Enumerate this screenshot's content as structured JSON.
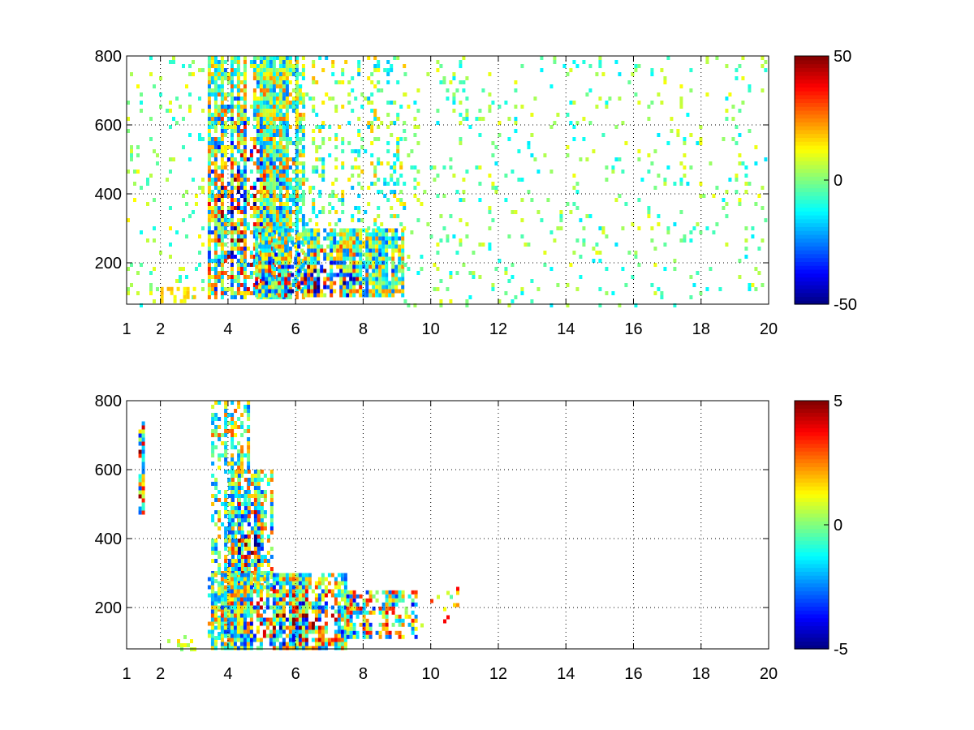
{
  "figure": {
    "background": "#ffffff"
  },
  "chart_data": [
    {
      "type": "heatmap",
      "title": "",
      "xlabel": "",
      "ylabel": "",
      "xlim": [
        1,
        20
      ],
      "ylim": [
        80,
        800
      ],
      "xticks": [
        1,
        2,
        4,
        6,
        8,
        10,
        12,
        14,
        16,
        18,
        20
      ],
      "xtick_labels": [
        "1",
        "2",
        "4",
        "6",
        "8",
        "10",
        "12",
        "14",
        "16",
        "18",
        "20"
      ],
      "xgrid_values": [
        2,
        4,
        6,
        8,
        10,
        12,
        14,
        16,
        18
      ],
      "yticks": [
        200,
        400,
        600,
        800
      ],
      "ytick_labels": [
        "200",
        "400",
        "600",
        "800"
      ],
      "grid": true,
      "grid_style": "dotted",
      "colormap": "jet",
      "clim": [
        -50,
        50
      ],
      "colorbar": {
        "placement": "right",
        "ticks": [
          -50,
          0,
          50
        ],
        "tick_labels": [
          "-50",
          "0",
          "50"
        ]
      },
      "regions": [
        {
          "x": [
            1.0,
            3.3
          ],
          "y": [
            80,
            800
          ],
          "value_range": [
            -12,
            14
          ],
          "density": 0.08,
          "note": "sparse vertical streaks"
        },
        {
          "x": [
            2.0,
            3.0
          ],
          "y": [
            90,
            130
          ],
          "value_range": [
            10,
            20
          ],
          "density": 0.5
        },
        {
          "x": [
            3.4,
            6.2
          ],
          "y": [
            100,
            800
          ],
          "value_range": [
            -45,
            45
          ],
          "density": 0.75,
          "peak": [
            4.3,
            350
          ]
        },
        {
          "x": [
            4.8,
            9.2
          ],
          "y": [
            100,
            300
          ],
          "value_range": [
            -50,
            45
          ],
          "density": 0.85,
          "peak": [
            6.5,
            160
          ]
        },
        {
          "x": [
            6.0,
            9.2
          ],
          "y": [
            300,
            800
          ],
          "value_range": [
            -20,
            20
          ],
          "density": 0.2
        },
        {
          "x": [
            9.2,
            20.0
          ],
          "y": [
            80,
            800
          ],
          "value_range": [
            -15,
            12
          ],
          "density": 0.07,
          "note": "scattered streaks"
        }
      ]
    },
    {
      "type": "heatmap",
      "title": "",
      "xlabel": "",
      "ylabel": "",
      "xlim": [
        1,
        20
      ],
      "ylim": [
        80,
        800
      ],
      "xticks": [
        1,
        2,
        4,
        6,
        8,
        10,
        12,
        14,
        16,
        18,
        20
      ],
      "xtick_labels": [
        "1",
        "2",
        "4",
        "6",
        "8",
        "10",
        "12",
        "14",
        "16",
        "18",
        "20"
      ],
      "xgrid_values": [
        2,
        4,
        6,
        8,
        10,
        12,
        14,
        16,
        18
      ],
      "yticks": [
        200,
        400,
        600,
        800
      ],
      "ytick_labels": [
        "200",
        "400",
        "600",
        "800"
      ],
      "grid": true,
      "grid_style": "dotted",
      "colormap": "jet",
      "clim": [
        -5,
        5
      ],
      "colorbar": {
        "placement": "right",
        "ticks": [
          -5,
          0,
          5
        ],
        "tick_labels": [
          "-5",
          "0",
          "5"
        ]
      },
      "regions": [
        {
          "x": [
            1.35,
            1.45
          ],
          "y": [
            470,
            740
          ],
          "value_range": [
            -5,
            5
          ],
          "density": 0.9,
          "note": "thin vertical line"
        },
        {
          "x": [
            2.2,
            3.0
          ],
          "y": [
            80,
            120
          ],
          "value_range": [
            0,
            2
          ],
          "density": 0.3
        },
        {
          "x": [
            3.5,
            4.6
          ],
          "y": [
            100,
            800
          ],
          "value_range": [
            -3,
            3
          ],
          "density": 0.55
        },
        {
          "x": [
            4.0,
            5.3
          ],
          "y": [
            250,
            600
          ],
          "value_range": [
            -5,
            5
          ],
          "density": 0.65,
          "peak": [
            4.6,
            380
          ]
        },
        {
          "x": [
            3.4,
            7.5
          ],
          "y": [
            80,
            300
          ],
          "value_range": [
            -5,
            5
          ],
          "density": 0.8,
          "peak": [
            5.8,
            170
          ]
        },
        {
          "x": [
            7.5,
            9.6
          ],
          "y": [
            120,
            250
          ],
          "value_range": [
            -4,
            4
          ],
          "density": 0.6
        },
        {
          "x": [
            9.6,
            10.8
          ],
          "y": [
            150,
            260
          ],
          "value_range": [
            -1,
            4
          ],
          "density": 0.1
        }
      ]
    }
  ]
}
